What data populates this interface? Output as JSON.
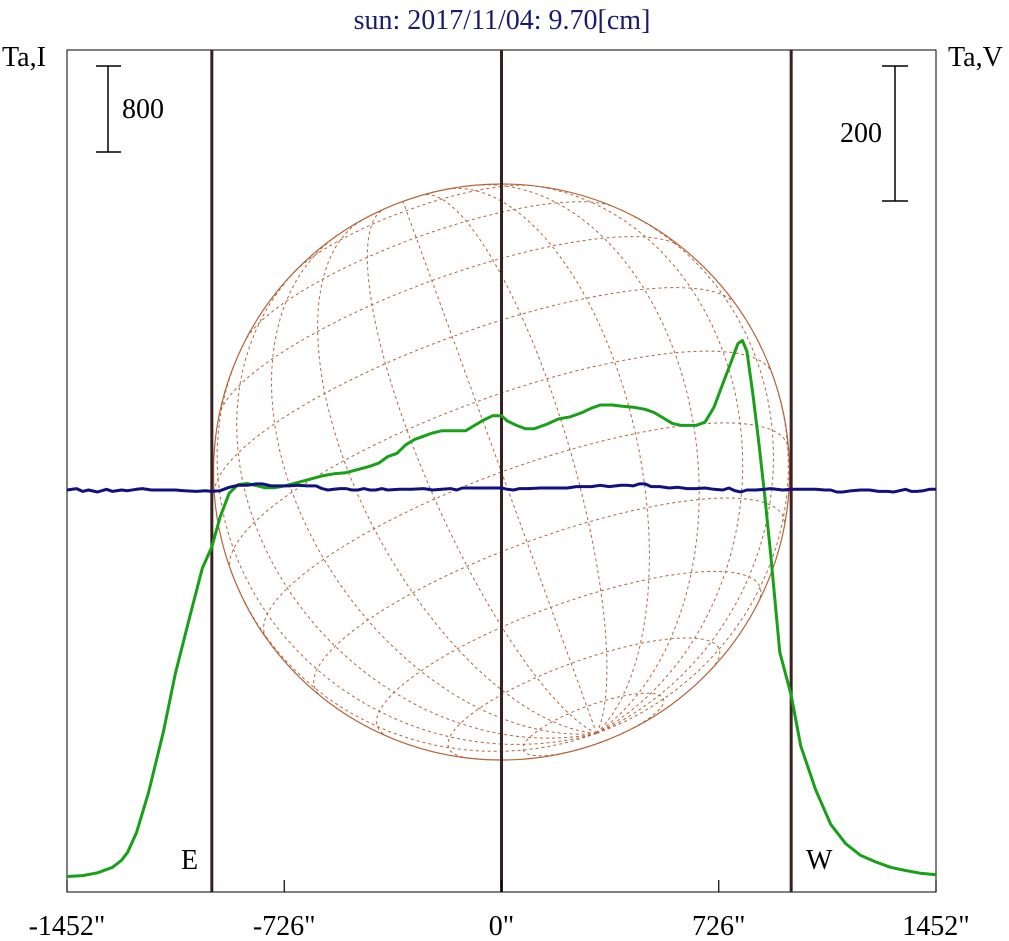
{
  "title": "sun: 2017/11/04: 9.70[cm]",
  "left_axis_label": "Ta,I",
  "right_axis_label": "Ta,V",
  "scale_bars": {
    "left": "800",
    "right": "200"
  },
  "limb_labels": {
    "east": "E",
    "west": "W"
  },
  "colors": {
    "title": "#1a1a6e",
    "intensity": "#19a019",
    "circular_polarization": "#101080",
    "limb_lines": "#3a2020",
    "disk": "#b5643a"
  },
  "chart_data": {
    "type": "line",
    "xlabel": "",
    "xlim": [
      -1452,
      1452
    ],
    "x_ticks": [
      -1452,
      -726,
      0,
      726,
      1452
    ],
    "x_tick_labels": [
      "-1452\"",
      "-726\"",
      "0\"",
      "726\"",
      "1452\""
    ],
    "limb_positions": [
      -968,
      0,
      968
    ],
    "series": [
      {
        "key": "intensity",
        "axis": "left",
        "points": [
          [
            -1452,
            14
          ],
          [
            -1400,
            22
          ],
          [
            -1350,
            48
          ],
          [
            -1300,
            100
          ],
          [
            -1270,
            165
          ],
          [
            -1250,
            235
          ],
          [
            -1220,
            420
          ],
          [
            -1180,
            790
          ],
          [
            -1130,
            1360
          ],
          [
            -1090,
            1900
          ],
          [
            -1040,
            2450
          ],
          [
            -1000,
            2880
          ],
          [
            -968,
            3080
          ],
          [
            -940,
            3360
          ],
          [
            -910,
            3580
          ],
          [
            -880,
            3660
          ],
          [
            -850,
            3670
          ],
          [
            -820,
            3650
          ],
          [
            -790,
            3630
          ],
          [
            -760,
            3630
          ],
          [
            -720,
            3650
          ],
          [
            -680,
            3680
          ],
          [
            -640,
            3710
          ],
          [
            -600,
            3740
          ],
          [
            -560,
            3760
          ],
          [
            -520,
            3770
          ],
          [
            -480,
            3800
          ],
          [
            -440,
            3830
          ],
          [
            -410,
            3860
          ],
          [
            -380,
            3920
          ],
          [
            -350,
            3950
          ],
          [
            -320,
            4030
          ],
          [
            -290,
            4080
          ],
          [
            -260,
            4110
          ],
          [
            -230,
            4140
          ],
          [
            -200,
            4160
          ],
          [
            -160,
            4160
          ],
          [
            -120,
            4160
          ],
          [
            -90,
            4210
          ],
          [
            -60,
            4260
          ],
          [
            -30,
            4300
          ],
          [
            0,
            4300
          ],
          [
            20,
            4250
          ],
          [
            50,
            4210
          ],
          [
            80,
            4180
          ],
          [
            110,
            4180
          ],
          [
            150,
            4220
          ],
          [
            190,
            4270
          ],
          [
            230,
            4290
          ],
          [
            270,
            4330
          ],
          [
            300,
            4370
          ],
          [
            330,
            4400
          ],
          [
            370,
            4400
          ],
          [
            400,
            4390
          ],
          [
            440,
            4380
          ],
          [
            480,
            4360
          ],
          [
            510,
            4330
          ],
          [
            540,
            4280
          ],
          [
            570,
            4230
          ],
          [
            600,
            4210
          ],
          [
            650,
            4210
          ],
          [
            680,
            4240
          ],
          [
            710,
            4380
          ],
          [
            740,
            4600
          ],
          [
            770,
            4820
          ],
          [
            790,
            4970
          ],
          [
            805,
            5000
          ],
          [
            820,
            4900
          ],
          [
            840,
            4500
          ],
          [
            860,
            4050
          ],
          [
            880,
            3550
          ],
          [
            900,
            3000
          ],
          [
            930,
            2100
          ],
          [
            968,
            1700
          ],
          [
            1000,
            1230
          ],
          [
            1050,
            820
          ],
          [
            1100,
            500
          ],
          [
            1150,
            320
          ],
          [
            1200,
            210
          ],
          [
            1250,
            150
          ],
          [
            1300,
            100
          ],
          [
            1350,
            70
          ],
          [
            1400,
            45
          ],
          [
            1452,
            30
          ]
        ]
      },
      {
        "key": "circular_polarization",
        "axis": "right",
        "points": [
          [
            -1452,
            0
          ],
          [
            -1420,
            2
          ],
          [
            -1400,
            -2
          ],
          [
            -1380,
            0
          ],
          [
            -1350,
            -3
          ],
          [
            -1320,
            1
          ],
          [
            -1300,
            -2
          ],
          [
            -1270,
            0
          ],
          [
            -1250,
            -1
          ],
          [
            -1220,
            1
          ],
          [
            -1200,
            2
          ],
          [
            -1170,
            0
          ],
          [
            -1130,
            0
          ],
          [
            -1090,
            0
          ],
          [
            -1060,
            -1
          ],
          [
            -1020,
            -2
          ],
          [
            -990,
            -1
          ],
          [
            -968,
            -2
          ],
          [
            -940,
            -1
          ],
          [
            -910,
            4
          ],
          [
            -880,
            7
          ],
          [
            -850,
            7
          ],
          [
            -820,
            9
          ],
          [
            -800,
            9
          ],
          [
            -770,
            6
          ],
          [
            -740,
            6
          ],
          [
            -710,
            6
          ],
          [
            -680,
            7
          ],
          [
            -650,
            6
          ],
          [
            -620,
            6
          ],
          [
            -600,
            2
          ],
          [
            -580,
            0
          ],
          [
            -560,
            1
          ],
          [
            -540,
            2
          ],
          [
            -520,
            2
          ],
          [
            -500,
            0
          ],
          [
            -480,
            0
          ],
          [
            -460,
            2
          ],
          [
            -440,
            0
          ],
          [
            -420,
            0
          ],
          [
            -400,
            2
          ],
          [
            -380,
            0
          ],
          [
            -340,
            1
          ],
          [
            -300,
            1
          ],
          [
            -260,
            2
          ],
          [
            -230,
            0
          ],
          [
            -200,
            1
          ],
          [
            -170,
            2
          ],
          [
            -150,
            0
          ],
          [
            -130,
            3
          ],
          [
            -100,
            3
          ],
          [
            -60,
            3
          ],
          [
            -30,
            3
          ],
          [
            0,
            3
          ],
          [
            20,
            1
          ],
          [
            40,
            0
          ],
          [
            60,
            2
          ],
          [
            90,
            2
          ],
          [
            130,
            3
          ],
          [
            160,
            3
          ],
          [
            190,
            3
          ],
          [
            220,
            3
          ],
          [
            250,
            5
          ],
          [
            280,
            5
          ],
          [
            300,
            5
          ],
          [
            330,
            7
          ],
          [
            360,
            5
          ],
          [
            400,
            7
          ],
          [
            420,
            7
          ],
          [
            440,
            6
          ],
          [
            460,
            9
          ],
          [
            480,
            9
          ],
          [
            500,
            5
          ],
          [
            530,
            5
          ],
          [
            560,
            3
          ],
          [
            590,
            4
          ],
          [
            620,
            2
          ],
          [
            650,
            2
          ],
          [
            680,
            3
          ],
          [
            710,
            1
          ],
          [
            740,
            0
          ],
          [
            760,
            3
          ],
          [
            780,
            -1
          ],
          [
            800,
            -3
          ],
          [
            820,
            0
          ],
          [
            850,
            0
          ],
          [
            880,
            1
          ],
          [
            900,
            2
          ],
          [
            940,
            0
          ],
          [
            968,
            1
          ],
          [
            1000,
            1
          ],
          [
            1050,
            1
          ],
          [
            1080,
            0
          ],
          [
            1100,
            0
          ],
          [
            1120,
            -3
          ],
          [
            1140,
            -3
          ],
          [
            1170,
            -1
          ],
          [
            1200,
            0
          ],
          [
            1230,
            0
          ],
          [
            1260,
            -2
          ],
          [
            1290,
            -2
          ],
          [
            1310,
            -3
          ],
          [
            1330,
            -1
          ],
          [
            1350,
            1
          ],
          [
            1370,
            -2
          ],
          [
            1390,
            -2
          ],
          [
            1410,
            -1
          ],
          [
            1430,
            1
          ],
          [
            1452,
            1
          ]
        ]
      }
    ]
  }
}
